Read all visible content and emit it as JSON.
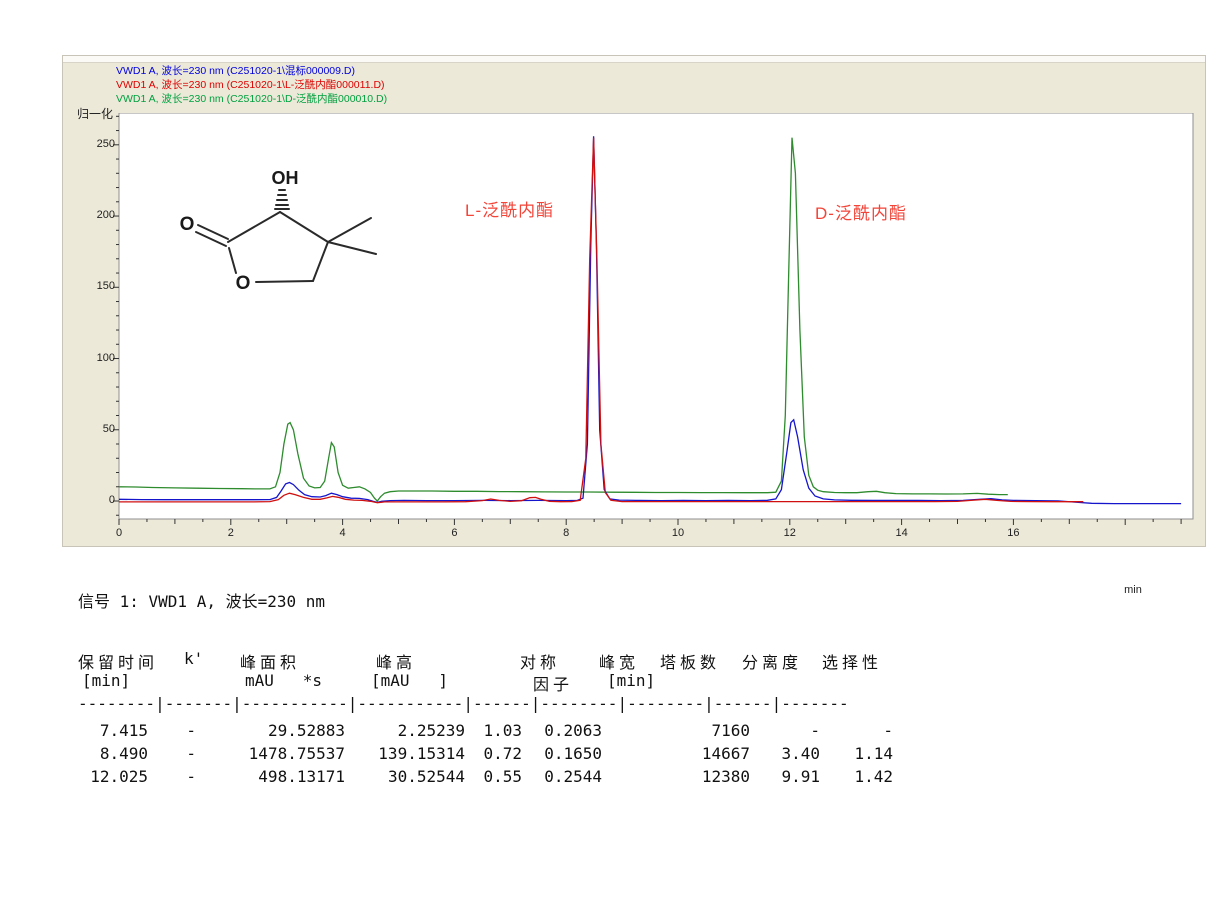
{
  "panel": {
    "bg": "#ece9d8"
  },
  "legend": {
    "items": [
      {
        "label": "VWD1 A, 波长=230 nm (C251020-1\\混标000009.D)",
        "color": "#0000dd"
      },
      {
        "label": "VWD1 A, 波长=230 nm (C251020-1\\L-泛酰内酯000011.D)",
        "color": "#dd0000"
      },
      {
        "label": "VWD1 A, 波长=230 nm (C251020-1\\D-泛酰内酯000010.D)",
        "color": "#00a040"
      }
    ]
  },
  "structure": {
    "oh": "OH",
    "o_carbonyl": "O",
    "o_ring": "O"
  },
  "chart_data": {
    "type": "line",
    "y_axis": {
      "label": "归一化",
      "ticks": [
        0,
        50,
        100,
        150,
        200,
        250
      ],
      "range": [
        -12,
        272
      ]
    },
    "x_axis": {
      "unit": "min",
      "tick_labels": [
        0,
        2,
        4,
        6,
        8,
        10,
        12,
        14,
        16
      ],
      "range": [
        0,
        19.2
      ]
    },
    "grid": false,
    "annotations": [
      {
        "text": "L-泛酰内酯",
        "retention_min": 8.49
      },
      {
        "text": "D-泛酰内酯",
        "retention_min": 12.025
      }
    ],
    "series": [
      {
        "name": "D-泛酰内酯000010.D",
        "color": "#2e8b2e",
        "points": [
          [
            0,
            10
          ],
          [
            0.3,
            9.8
          ],
          [
            0.6,
            9.5
          ],
          [
            1,
            9.2
          ],
          [
            1.4,
            9
          ],
          [
            1.8,
            8.8
          ],
          [
            2.2,
            8.6
          ],
          [
            2.5,
            8.5
          ],
          [
            2.7,
            8.5
          ],
          [
            2.8,
            10
          ],
          [
            2.88,
            20
          ],
          [
            2.95,
            40
          ],
          [
            3.02,
            54
          ],
          [
            3.06,
            55
          ],
          [
            3.12,
            50
          ],
          [
            3.2,
            33
          ],
          [
            3.3,
            16
          ],
          [
            3.4,
            10.5
          ],
          [
            3.5,
            9.2
          ],
          [
            3.6,
            9.5
          ],
          [
            3.68,
            14
          ],
          [
            3.75,
            30
          ],
          [
            3.8,
            41
          ],
          [
            3.85,
            38
          ],
          [
            3.92,
            20
          ],
          [
            4,
            11
          ],
          [
            4.1,
            9
          ],
          [
            4.2,
            9.5
          ],
          [
            4.3,
            10
          ],
          [
            4.4,
            8.5
          ],
          [
            4.5,
            6
          ],
          [
            4.57,
            2
          ],
          [
            4.62,
            0
          ],
          [
            4.68,
            3
          ],
          [
            4.75,
            5.5
          ],
          [
            4.85,
            6.5
          ],
          [
            5,
            7
          ],
          [
            5.3,
            7
          ],
          [
            5.6,
            7
          ],
          [
            6,
            6.8
          ],
          [
            6.4,
            6.8
          ],
          [
            6.8,
            6.6
          ],
          [
            7.2,
            6.5
          ],
          [
            7.6,
            6.4
          ],
          [
            8,
            6.3
          ],
          [
            8.4,
            6.3
          ],
          [
            8.8,
            6.2
          ],
          [
            9.2,
            6.1
          ],
          [
            9.6,
            6
          ],
          [
            10,
            6
          ],
          [
            10.4,
            5.9
          ],
          [
            10.8,
            5.9
          ],
          [
            11.2,
            5.8
          ],
          [
            11.6,
            5.8
          ],
          [
            11.75,
            6.2
          ],
          [
            11.85,
            14
          ],
          [
            11.92,
            60
          ],
          [
            11.98,
            160
          ],
          [
            12.04,
            255
          ],
          [
            12.1,
            230
          ],
          [
            12.18,
            120
          ],
          [
            12.26,
            45
          ],
          [
            12.34,
            18
          ],
          [
            12.42,
            10
          ],
          [
            12.5,
            7.5
          ],
          [
            12.6,
            6.5
          ],
          [
            12.8,
            6
          ],
          [
            13,
            5.8
          ],
          [
            13.2,
            5.8
          ],
          [
            13.4,
            6.5
          ],
          [
            13.55,
            6.8
          ],
          [
            13.7,
            5.8
          ],
          [
            13.9,
            5.2
          ],
          [
            14.2,
            5
          ],
          [
            14.5,
            5
          ],
          [
            14.8,
            4.9
          ],
          [
            15.1,
            5
          ],
          [
            15.35,
            5.3
          ],
          [
            15.55,
            4.8
          ],
          [
            15.75,
            4.5
          ],
          [
            15.9,
            4.5
          ]
        ]
      },
      {
        "name": "混标000009.D",
        "color": "#1515cc",
        "points": [
          [
            0,
            1.2
          ],
          [
            0.4,
            1
          ],
          [
            0.8,
            0.9
          ],
          [
            1.2,
            0.9
          ],
          [
            1.6,
            0.9
          ],
          [
            2,
            0.9
          ],
          [
            2.4,
            0.9
          ],
          [
            2.7,
            1
          ],
          [
            2.82,
            2.5
          ],
          [
            2.9,
            7
          ],
          [
            2.98,
            12
          ],
          [
            3.05,
            13
          ],
          [
            3.12,
            11.5
          ],
          [
            3.22,
            7.5
          ],
          [
            3.32,
            4.5
          ],
          [
            3.45,
            3
          ],
          [
            3.6,
            2.8
          ],
          [
            3.7,
            3.8
          ],
          [
            3.8,
            5.5
          ],
          [
            3.9,
            4.5
          ],
          [
            4,
            3
          ],
          [
            4.15,
            2
          ],
          [
            4.3,
            1.8
          ],
          [
            4.45,
            1
          ],
          [
            4.55,
            -0.3
          ],
          [
            4.62,
            -1
          ],
          [
            4.7,
            -0.2
          ],
          [
            4.85,
            0.3
          ],
          [
            5.1,
            0.4
          ],
          [
            5.5,
            0.3
          ],
          [
            6,
            0.3
          ],
          [
            6.5,
            0.4
          ],
          [
            7,
            0.3
          ],
          [
            7.5,
            0.4
          ],
          [
            8,
            0.3
          ],
          [
            8.2,
            0.4
          ],
          [
            8.3,
            2
          ],
          [
            8.38,
            40
          ],
          [
            8.44,
            180
          ],
          [
            8.49,
            256
          ],
          [
            8.54,
            180
          ],
          [
            8.6,
            50
          ],
          [
            8.68,
            8
          ],
          [
            8.78,
            1.5
          ],
          [
            8.95,
            0.6
          ],
          [
            9.3,
            0.4
          ],
          [
            9.7,
            0.3
          ],
          [
            10.1,
            0.4
          ],
          [
            10.5,
            0.3
          ],
          [
            10.9,
            0.4
          ],
          [
            11.3,
            0.3
          ],
          [
            11.6,
            0.5
          ],
          [
            11.75,
            1.5
          ],
          [
            11.85,
            8
          ],
          [
            11.95,
            35
          ],
          [
            12.02,
            55
          ],
          [
            12.07,
            57
          ],
          [
            12.14,
            45
          ],
          [
            12.24,
            22
          ],
          [
            12.34,
            9
          ],
          [
            12.45,
            3.5
          ],
          [
            12.6,
            1.5
          ],
          [
            12.8,
            0.8
          ],
          [
            13.1,
            0.5
          ],
          [
            13.5,
            0.4
          ],
          [
            13.9,
            0.4
          ],
          [
            14.3,
            0.4
          ],
          [
            14.7,
            0.3
          ],
          [
            15.1,
            0.4
          ],
          [
            15.4,
            1.2
          ],
          [
            15.6,
            1.6
          ],
          [
            15.8,
            0.8
          ],
          [
            16,
            0.4
          ],
          [
            16.4,
            0.3
          ],
          [
            16.8,
            0.1
          ],
          [
            17.1,
            -0.8
          ],
          [
            17.4,
            -1.6
          ],
          [
            17.8,
            -1.8
          ],
          [
            18.2,
            -1.8
          ],
          [
            18.6,
            -1.8
          ],
          [
            19,
            -1.8
          ]
        ]
      },
      {
        "name": "L-泛酰内酯000011.D",
        "color": "#d01010",
        "points": [
          [
            0,
            -0.6
          ],
          [
            0.4,
            -0.6
          ],
          [
            0.8,
            -0.6
          ],
          [
            1.2,
            -0.6
          ],
          [
            1.6,
            -0.6
          ],
          [
            2,
            -0.6
          ],
          [
            2.4,
            -0.6
          ],
          [
            2.7,
            -0.4
          ],
          [
            2.85,
            1
          ],
          [
            2.95,
            4
          ],
          [
            3.05,
            5.5
          ],
          [
            3.15,
            4.5
          ],
          [
            3.3,
            2.5
          ],
          [
            3.45,
            1.2
          ],
          [
            3.6,
            1.2
          ],
          [
            3.72,
            2.2
          ],
          [
            3.82,
            3.2
          ],
          [
            3.92,
            2.6
          ],
          [
            4.05,
            1.2
          ],
          [
            4.2,
            0.6
          ],
          [
            4.35,
            0.4
          ],
          [
            4.5,
            -0.2
          ],
          [
            4.62,
            -1.2
          ],
          [
            4.75,
            -0.6
          ],
          [
            5,
            -0.6
          ],
          [
            5.4,
            -0.6
          ],
          [
            5.8,
            -0.6
          ],
          [
            6.2,
            -0.5
          ],
          [
            6.5,
            0.3
          ],
          [
            6.65,
            1.4
          ],
          [
            6.8,
            0.4
          ],
          [
            7,
            -0.3
          ],
          [
            7.2,
            0.2
          ],
          [
            7.35,
            2.3
          ],
          [
            7.45,
            2.5
          ],
          [
            7.55,
            1.2
          ],
          [
            7.7,
            -0.2
          ],
          [
            7.9,
            -0.5
          ],
          [
            8.1,
            -0.4
          ],
          [
            8.25,
            0.5
          ],
          [
            8.35,
            30
          ],
          [
            8.42,
            170
          ],
          [
            8.49,
            255
          ],
          [
            8.55,
            170
          ],
          [
            8.62,
            40
          ],
          [
            8.7,
            6
          ],
          [
            8.8,
            0.5
          ],
          [
            9,
            -0.4
          ],
          [
            9.4,
            -0.4
          ],
          [
            9.8,
            -0.4
          ],
          [
            10.2,
            -0.4
          ],
          [
            10.6,
            -0.4
          ],
          [
            11,
            -0.4
          ],
          [
            11.4,
            -0.4
          ],
          [
            11.8,
            -0.4
          ],
          [
            12.2,
            -0.4
          ],
          [
            12.6,
            -0.4
          ],
          [
            13,
            -0.4
          ],
          [
            13.4,
            -0.4
          ],
          [
            13.8,
            -0.4
          ],
          [
            14.2,
            -0.4
          ],
          [
            14.6,
            -0.4
          ],
          [
            15,
            -0.3
          ],
          [
            15.3,
            0.6
          ],
          [
            15.5,
            1.2
          ],
          [
            15.7,
            0.4
          ],
          [
            15.95,
            -0.3
          ],
          [
            16.3,
            -0.4
          ],
          [
            16.7,
            -0.5
          ],
          [
            17,
            -0.5
          ],
          [
            17.25,
            -0.5
          ]
        ]
      }
    ]
  },
  "report": {
    "signal_line": "信号 1: VWD1 A, 波长=230 nm",
    "header_row1": [
      "保留时间",
      "k'",
      "峰面积",
      "峰高",
      "对称",
      "峰宽",
      "塔板数",
      "分离度",
      "选择性"
    ],
    "header_row2": [
      "[min]",
      "mAU   *s",
      "[mAU   ]",
      "因子",
      "[min]"
    ],
    "separator": "--------|-------|-----------|-----------|------|--------|--------|------|-------",
    "rows": [
      [
        "7.415",
        "-",
        "29.52883",
        "2.25239",
        "1.03",
        "0.2063",
        "7160",
        "-",
        "-"
      ],
      [
        "8.490",
        "-",
        "1478.75537",
        "139.15314",
        "0.72",
        "0.1650",
        "14667",
        "3.40",
        "1.14"
      ],
      [
        "12.025",
        "-",
        "498.13171",
        "30.52544",
        "0.55",
        "0.2544",
        "12380",
        "9.91",
        "1.42"
      ]
    ]
  }
}
